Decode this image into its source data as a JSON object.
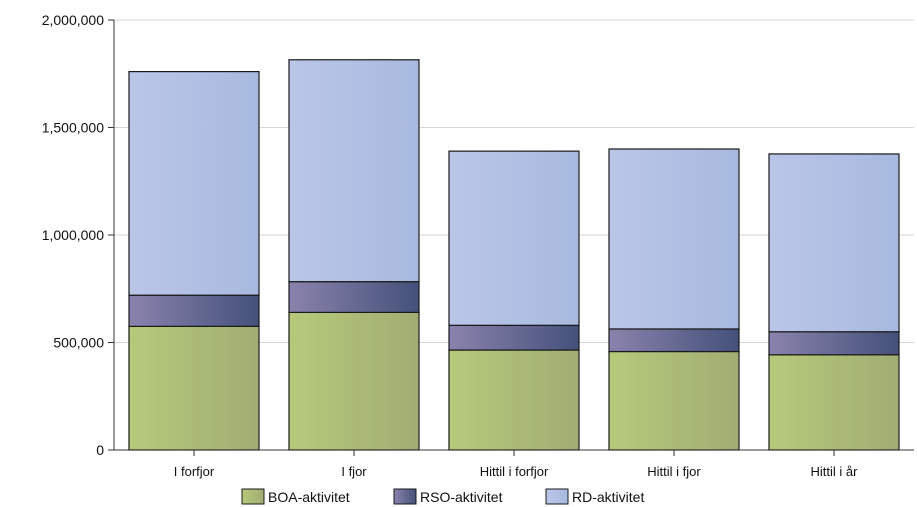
{
  "chart_data": {
    "type": "bar",
    "stacked": true,
    "categories": [
      "I forfjor",
      "I fjor",
      "Hittil i forfjor",
      "Hittil i fjor",
      "Hittil i år"
    ],
    "series": [
      {
        "name": "BOA-aktivitet",
        "values": [
          575000,
          640000,
          465000,
          458000,
          443000
        ],
        "color": "#a7b96c"
      },
      {
        "name": "RSO-aktivitet",
        "values": [
          145000,
          143000,
          115000,
          105000,
          107000
        ],
        "color": "#5d6490"
      },
      {
        "name": "RD-aktivitet",
        "values": [
          1040000,
          1032000,
          810000,
          837000,
          827000
        ],
        "color": "#b1c1e3"
      }
    ],
    "ylim": [
      0,
      2000000
    ],
    "yticks": [
      0,
      500000,
      1000000,
      1500000,
      2000000
    ],
    "ytick_labels": [
      "0",
      "500,000",
      "1,000,000",
      "1,500,000",
      "2,000,000"
    ],
    "grid": true,
    "legend": "bottom"
  }
}
